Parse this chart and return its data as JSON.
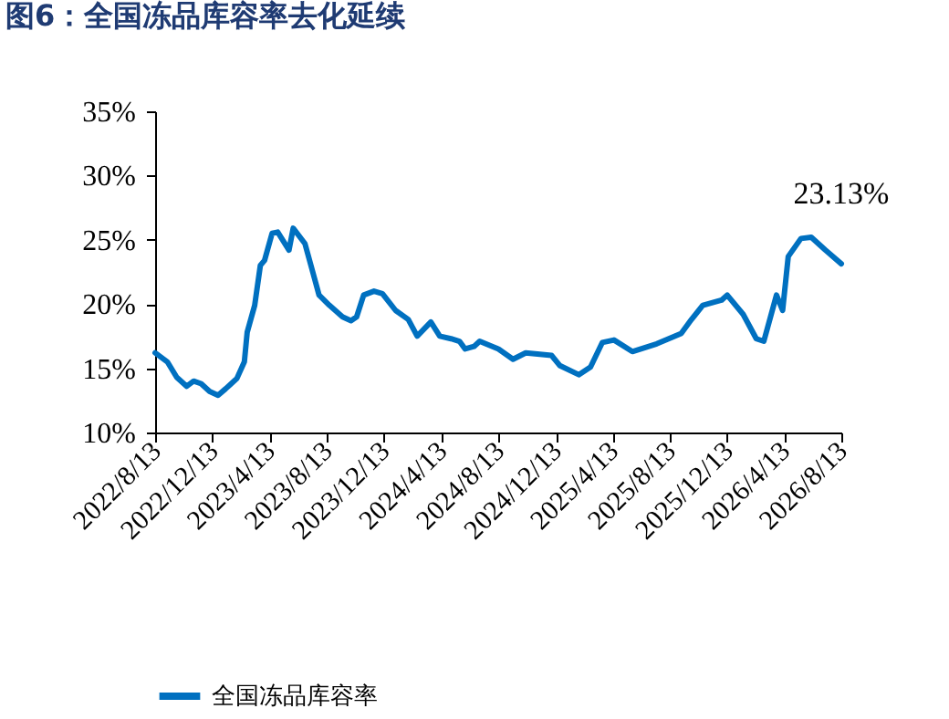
{
  "chart_data": {
    "type": "line",
    "title": "图6：全国冻品库容率去化延续",
    "x": [
      "2022-08-13",
      "2022-09-08",
      "2022-09-28",
      "2022-10-19",
      "2022-11-03",
      "2022-11-19",
      "2022-12-07",
      "2022-12-25",
      "2023-01-10",
      "2023-02-03",
      "2023-02-19",
      "2023-02-25",
      "2023-03-13",
      "2023-03-25",
      "2023-04-03",
      "2023-04-19",
      "2023-05-01",
      "2023-05-25",
      "2023-06-03",
      "2023-06-28",
      "2023-07-16",
      "2023-07-28",
      "2023-08-19",
      "2023-09-16",
      "2023-10-04",
      "2023-10-16",
      "2023-10-31",
      "2023-11-22",
      "2023-12-10",
      "2024-01-07",
      "2024-02-03",
      "2024-02-22",
      "2024-03-22",
      "2024-04-10",
      "2024-05-04",
      "2024-05-22",
      "2024-06-03",
      "2024-06-22",
      "2024-07-04",
      "2024-08-13",
      "2024-09-13",
      "2024-10-10",
      "2024-12-04",
      "2024-12-22",
      "2025-01-31",
      "2025-02-25",
      "2025-03-22",
      "2025-04-16",
      "2025-05-25",
      "2025-07-16",
      "2025-09-06",
      "2025-09-28",
      "2025-10-22",
      "2025-12-01",
      "2025-12-13",
      "2026-01-16",
      "2026-02-13",
      "2026-03-01",
      "2026-03-28",
      "2026-04-10",
      "2026-04-22",
      "2026-05-19",
      "2026-06-10",
      "2026-07-10",
      "2026-08-13"
    ],
    "series": [
      {
        "name": "全国冻品库容率",
        "color": "#0070c0",
        "values": [
          16.2,
          15.5,
          14.3,
          13.6,
          14.0,
          13.8,
          13.2,
          12.9,
          13.4,
          14.2,
          15.5,
          17.8,
          19.9,
          23.0,
          23.4,
          25.5,
          25.6,
          24.2,
          25.9,
          24.7,
          22.3,
          20.7,
          19.9,
          19.0,
          18.7,
          19.0,
          20.7,
          21.0,
          20.8,
          19.5,
          18.8,
          17.5,
          18.6,
          17.5,
          17.3,
          17.1,
          16.5,
          16.7,
          17.1,
          16.5,
          15.7,
          16.2,
          16.0,
          15.2,
          14.5,
          15.1,
          17.0,
          17.2,
          16.3,
          16.9,
          17.7,
          18.8,
          19.9,
          20.3,
          20.7,
          19.2,
          17.3,
          17.1,
          20.7,
          19.5,
          23.7,
          25.1,
          25.2,
          24.2,
          23.13
        ]
      }
    ],
    "xlim": [
      "2022-08-13",
      "2026-08-13"
    ],
    "xticks": [
      {
        "value": "2022-08-13",
        "label": "2022/8/13"
      },
      {
        "value": "2022-12-13",
        "label": "2022/12/13"
      },
      {
        "value": "2023-04-13",
        "label": "2023/4/13"
      },
      {
        "value": "2023-08-13",
        "label": "2023/8/13"
      },
      {
        "value": "2023-12-13",
        "label": "2023/12/13"
      },
      {
        "value": "2024-04-13",
        "label": "2024/4/13"
      },
      {
        "value": "2024-08-13",
        "label": "2024/8/13"
      },
      {
        "value": "2024-12-13",
        "label": "2024/12/13"
      },
      {
        "value": "2025-04-13",
        "label": "2025/4/13"
      },
      {
        "value": "2025-08-13",
        "label": "2025/8/13"
      },
      {
        "value": "2025-12-13",
        "label": "2025/12/13"
      },
      {
        "value": "2026-04-13",
        "label": "2026/4/13"
      },
      {
        "value": "2026-08-13",
        "label": "2026/8/13"
      }
    ],
    "ylim": [
      10,
      35
    ],
    "yticks": [
      {
        "value": 10,
        "label": "10%"
      },
      {
        "value": 15,
        "label": "15%"
      },
      {
        "value": 20,
        "label": "20%"
      },
      {
        "value": 25,
        "label": "25%"
      },
      {
        "value": 30,
        "label": "30%"
      },
      {
        "value": 35,
        "label": "35%"
      }
    ],
    "annotations": [
      {
        "text": "23.13%",
        "x": "2026-08-13",
        "y": 23.13
      }
    ],
    "legend": "bottom",
    "grid": false
  }
}
